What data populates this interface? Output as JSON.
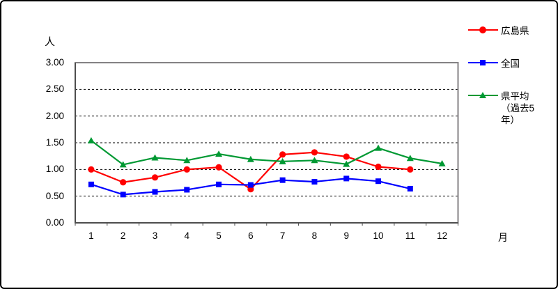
{
  "axis_labels": {
    "y_unit": "人",
    "x_unit": "月"
  },
  "legend": {
    "position": "right",
    "items": [
      {
        "key": "hiroshima",
        "label": "広島県",
        "color": "#ff0000",
        "marker": "circle"
      },
      {
        "key": "national",
        "label": "全国",
        "color": "#0000ff",
        "marker": "square"
      },
      {
        "key": "pref-average",
        "label": "県平均（過去5年）",
        "label_lines": [
          "県平均",
          "（過去5",
          "年）"
        ],
        "color": "#009933",
        "marker": "triangle"
      }
    ]
  },
  "chart_data": {
    "type": "line",
    "title": "",
    "xlabel": "月",
    "ylabel": "人",
    "categories": [
      1,
      2,
      3,
      4,
      5,
      6,
      7,
      8,
      9,
      10,
      11,
      12
    ],
    "ylim": [
      0,
      3
    ],
    "y_tick_step": 0.5,
    "y_tick_labels": [
      "0.00",
      "0.50",
      "1.00",
      "1.50",
      "2.00",
      "2.50",
      "3.00"
    ],
    "grid": "horizontal-dashed-black",
    "legend_position": "right",
    "series": [
      {
        "name": "広島県",
        "key": "hiroshima",
        "color": "#ff0000",
        "marker": "circle",
        "values": [
          1.0,
          0.76,
          0.85,
          1.0,
          1.04,
          0.63,
          1.28,
          1.32,
          1.24,
          1.05,
          1.0,
          null
        ]
      },
      {
        "name": "全国",
        "key": "national",
        "color": "#0000ff",
        "marker": "square",
        "values": [
          0.72,
          0.53,
          0.58,
          0.62,
          0.72,
          0.71,
          0.8,
          0.77,
          0.83,
          0.78,
          0.64,
          null
        ]
      },
      {
        "name": "県平均（過去5年）",
        "key": "pref-average",
        "color": "#009933",
        "marker": "triangle",
        "values": [
          1.54,
          1.09,
          1.22,
          1.17,
          1.29,
          1.19,
          1.15,
          1.17,
          1.1,
          1.4,
          1.21,
          1.11
        ]
      }
    ]
  }
}
